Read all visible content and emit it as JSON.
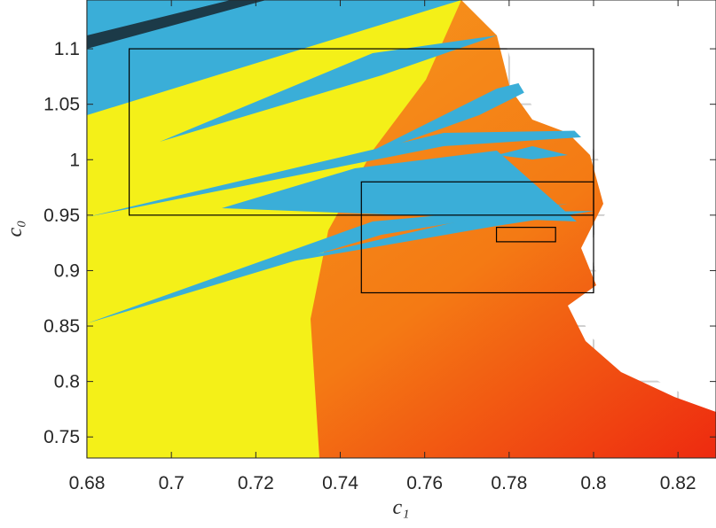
{
  "chart_data": {
    "type": "image-plot",
    "x_label": "c₁",
    "y_label": "c₀",
    "xlim": [
      0.68,
      0.829
    ],
    "ylim": [
      0.731,
      1.144
    ],
    "xticks": [
      0.68,
      0.7,
      0.72,
      0.74,
      0.76,
      0.78,
      0.8,
      0.82
    ],
    "yticks": [
      0.75,
      0.8,
      0.85,
      0.9,
      0.95,
      1,
      1.05,
      1.1
    ],
    "grid": true,
    "boxes": [
      {
        "x": [
          0.69,
          0.8
        ],
        "y": [
          0.95,
          1.1
        ]
      },
      {
        "x": [
          0.745,
          0.8
        ],
        "y": [
          0.88,
          0.98
        ]
      },
      {
        "x": [
          0.777,
          0.791
        ],
        "y": [
          0.926,
          0.939
        ]
      }
    ],
    "box_color": "#000000"
  }
}
